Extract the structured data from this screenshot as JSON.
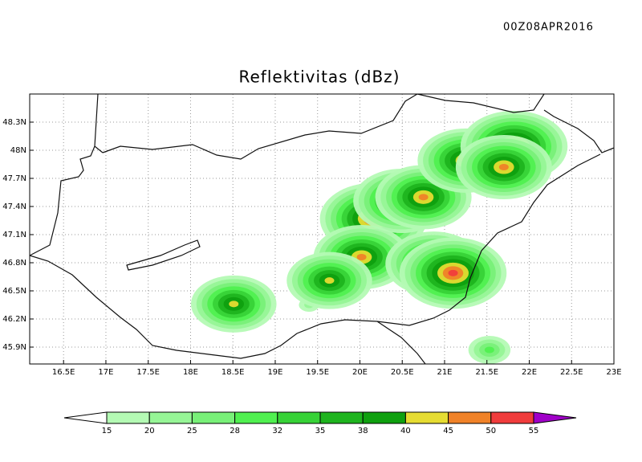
{
  "timestamp": "00Z08APR2016",
  "title": "Reflektivitas (dBz)",
  "map": {
    "xlim": [
      16.1,
      23.0
    ],
    "ylim": [
      45.72,
      48.6
    ],
    "xticks": [
      {
        "value": 16.5,
        "label": "16.5E"
      },
      {
        "value": 17,
        "label": "17E"
      },
      {
        "value": 17.5,
        "label": "17.5E"
      },
      {
        "value": 18,
        "label": "18E"
      },
      {
        "value": 18.5,
        "label": "18.5E"
      },
      {
        "value": 19,
        "label": "19E"
      },
      {
        "value": 19.5,
        "label": "19.5E"
      },
      {
        "value": 20,
        "label": "20E"
      },
      {
        "value": 20.5,
        "label": "20.5E"
      },
      {
        "value": 21,
        "label": "21E"
      },
      {
        "value": 21.5,
        "label": "21.5E"
      },
      {
        "value": 22,
        "label": "22E"
      },
      {
        "value": 22.5,
        "label": "22.5E"
      },
      {
        "value": 23,
        "label": "23E"
      }
    ],
    "yticks": [
      {
        "value": 45.9,
        "label": "45.9N"
      },
      {
        "value": 46.2,
        "label": "46.2N"
      },
      {
        "value": 46.5,
        "label": "46.5N"
      },
      {
        "value": 46.8,
        "label": "46.8N"
      },
      {
        "value": 47.1,
        "label": "47.1N"
      },
      {
        "value": 47.4,
        "label": "47.4N"
      },
      {
        "value": 47.7,
        "label": "47.7N"
      },
      {
        "value": 48,
        "label": "48N"
      },
      {
        "value": 48.3,
        "label": "48.3N"
      }
    ],
    "grid": true,
    "cells": [
      {
        "lon": 20.3,
        "lat": 47.1,
        "dbz": 30
      },
      {
        "lon": 20.0,
        "lat": 47.4,
        "dbz": 32
      },
      {
        "lon": 20.5,
        "lat": 47.6,
        "dbz": 30
      },
      {
        "lon": 21.0,
        "lat": 47.7,
        "dbz": 30
      },
      {
        "lon": 20.1,
        "lat": 46.7,
        "dbz": 28
      },
      {
        "lon": 20.7,
        "lat": 46.9,
        "dbz": 32
      },
      {
        "lon": 19.8,
        "lat": 46.5,
        "dbz": 25
      },
      {
        "lon": 19.4,
        "lat": 46.35,
        "dbz": 20
      },
      {
        "lon": 21.3,
        "lat": 46.55,
        "dbz": 25
      },
      {
        "lon": 20.16,
        "lat": 47.27,
        "dbz": 52
      },
      {
        "lon": 20.02,
        "lat": 46.86,
        "dbz": 47
      },
      {
        "lon": 20.87,
        "lat": 46.79,
        "dbz": 48
      },
      {
        "lon": 21.1,
        "lat": 46.69,
        "dbz": 50
      },
      {
        "lon": 20.49,
        "lat": 47.46,
        "dbz": 45
      },
      {
        "lon": 20.75,
        "lat": 47.5,
        "dbz": 45
      },
      {
        "lon": 21.25,
        "lat": 47.89,
        "dbz": 45
      },
      {
        "lon": 21.82,
        "lat": 48.04,
        "dbz": 50
      },
      {
        "lon": 21.7,
        "lat": 47.82,
        "dbz": 48
      },
      {
        "lon": 19.64,
        "lat": 46.61,
        "dbz": 42
      },
      {
        "lon": 18.51,
        "lat": 46.36,
        "dbz": 40
      },
      {
        "lon": 21.53,
        "lat": 45.87,
        "dbz": 28
      }
    ]
  },
  "colorbar": {
    "levels": [
      15,
      20,
      25,
      28,
      32,
      35,
      38,
      40,
      45,
      50,
      55
    ],
    "colors": [
      "#ffffff",
      "#b4fab4",
      "#96f596",
      "#78f078",
      "#50f050",
      "#37d237",
      "#1eb41e",
      "#0fa00f",
      "#e6dc32",
      "#f08228",
      "#f03c3c",
      "#a000c8"
    ]
  }
}
